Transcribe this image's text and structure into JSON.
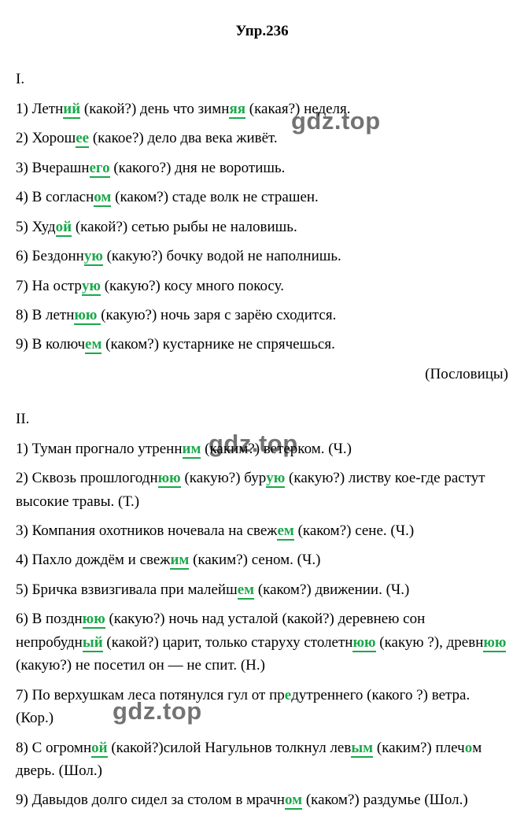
{
  "title": "Упр.236",
  "watermark": "gdz.top",
  "sectionI": {
    "label": "I.",
    "attribution": "(Пословицы)",
    "items": [
      {
        "n": "1)",
        "parts": [
          "Летн",
          {
            "hl": "ий"
          },
          " (какой?) день что зимн",
          {
            "hl": "яя"
          },
          " (какая?) неделя."
        ]
      },
      {
        "n": "2)",
        "parts": [
          "Хорош",
          {
            "hl": "ее"
          },
          " (какое?) дело два века живёт."
        ]
      },
      {
        "n": "3)",
        "parts": [
          "Вчерашн",
          {
            "hl": "его"
          },
          " (какого?) дня не воротишь."
        ]
      },
      {
        "n": "4)",
        "parts": [
          "В согласн",
          {
            "hl": "ом"
          },
          " (каком?) стаде волк не страшен."
        ]
      },
      {
        "n": "5)",
        "parts": [
          "Худ",
          {
            "hl": "ой"
          },
          " (какой?) сетью рыбы не наловишь."
        ]
      },
      {
        "n": "6)",
        "parts": [
          "Бездонн",
          {
            "hl": "ую"
          },
          " (какую?) бочку водой не наполнишь."
        ]
      },
      {
        "n": "7)",
        "parts": [
          "На остр",
          {
            "hl": "ую"
          },
          " (какую?) косу много покосу."
        ]
      },
      {
        "n": "8)",
        "parts": [
          "В летн",
          {
            "hl": "юю "
          },
          "(какую?) ночь заря с зарёю сходится."
        ]
      },
      {
        "n": "9)",
        "parts": [
          "В колюч",
          {
            "hl": "ем"
          },
          " (каком?) кустарнике не спрячешься."
        ]
      }
    ]
  },
  "sectionII": {
    "label": "II.",
    "items": [
      {
        "n": "1)",
        "parts": [
          "Туман прогнало утренн",
          {
            "hl": "им"
          },
          " (каким?) ветерком. (Ч.)"
        ]
      },
      {
        "n": "2)",
        "parts": [
          "Сквозь прошлогодн",
          {
            "hl": "юю"
          },
          " (какую?) бур",
          {
            "hl": "ую"
          },
          " (какую?) листву кое-где растут высокие травы. (Т.)"
        ]
      },
      {
        "n": "3)",
        "parts": [
          "Компания охотников ночевала на свеж",
          {
            "hl": "ем"
          },
          " (каком?) сене. (Ч.)"
        ]
      },
      {
        "n": "4)",
        "parts": [
          "Пахло дождём и свеж",
          {
            "hl": "им"
          },
          " (каким?) сеном. (Ч.)"
        ]
      },
      {
        "n": "5)",
        "parts": [
          "Бричка взвизгивала при малейш",
          {
            "hl": "ем"
          },
          " (каком?) движении. (Ч.)"
        ]
      },
      {
        "n": "6)",
        "parts": [
          "В поздн",
          {
            "hl": "юю"
          },
          " (какую?) ночь над усталой (какой?) деревнею сон непробудн",
          {
            "hl": "ый"
          },
          " (какой?) царит, только старуху столетн",
          {
            "hl": "юю"
          },
          " (какую ?), древн",
          {
            "hl": "юю"
          },
          " (какую?) не посетил он — не спит. (Н.)"
        ]
      },
      {
        "n": "7)",
        "parts": [
          "По верхушкам леса потянулся гул от пр",
          {
            "hlnu": "е"
          },
          "дутреннего (какого ?) ветра. (Кор.)"
        ]
      },
      {
        "n": "8)",
        "parts": [
          "С огромн",
          {
            "hl": "ой"
          },
          " (какой?)силой Нагульнов толкнул лев",
          {
            "hl": "ым"
          },
          " (каким?) плеч",
          {
            "hlnu": "о"
          },
          "м дверь. (Шол.)"
        ]
      },
      {
        "n": "9)",
        "parts": [
          "Давыдов долго сидел за столом в мрачн",
          {
            "hl": "ом"
          },
          " (каком?) раздумье (Шол.)"
        ]
      }
    ]
  }
}
